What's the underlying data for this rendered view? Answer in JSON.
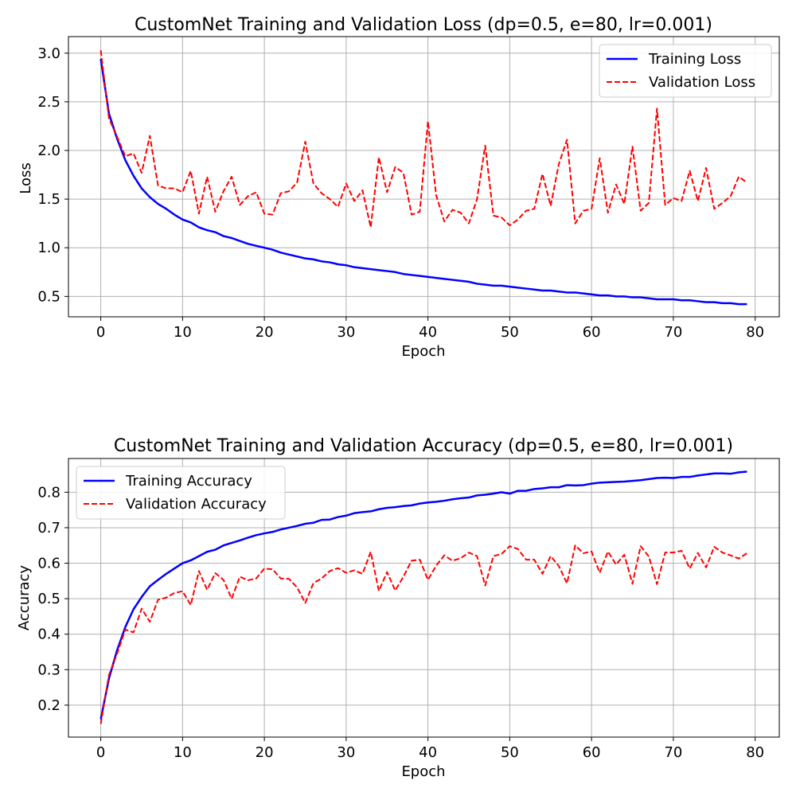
{
  "chart_data": [
    {
      "type": "line",
      "title": "CustomNet Training and Validation Loss (dp=0.5, e=80, lr=0.001)",
      "xlabel": "Epoch",
      "ylabel": "Loss",
      "xlim": [
        -3.95,
        82.95
      ],
      "ylim": [
        0.29,
        3.17
      ],
      "xticks": [
        0,
        10,
        20,
        30,
        40,
        50,
        60,
        70,
        80
      ],
      "xtick_labels": [
        "0",
        "10",
        "20",
        "30",
        "40",
        "50",
        "60",
        "70",
        "80"
      ],
      "yticks": [
        0.5,
        1.0,
        1.5,
        2.0,
        2.5,
        3.0
      ],
      "ytick_labels": [
        "0.5",
        "1.0",
        "1.5",
        "2.0",
        "2.5",
        "3.0"
      ],
      "grid": true,
      "legend_position": "upper right",
      "x": [
        0,
        1,
        2,
        3,
        4,
        5,
        6,
        7,
        8,
        9,
        10,
        11,
        12,
        13,
        14,
        15,
        16,
        17,
        18,
        19,
        20,
        21,
        22,
        23,
        24,
        25,
        26,
        27,
        28,
        29,
        30,
        31,
        32,
        33,
        34,
        35,
        36,
        37,
        38,
        39,
        40,
        41,
        42,
        43,
        44,
        45,
        46,
        47,
        48,
        49,
        50,
        51,
        52,
        53,
        54,
        55,
        56,
        57,
        58,
        59,
        60,
        61,
        62,
        63,
        64,
        65,
        66,
        67,
        68,
        69,
        70,
        71,
        72,
        73,
        74,
        75,
        76,
        77,
        78,
        79
      ],
      "series": [
        {
          "name": "Training Loss",
          "color": "#0000ff",
          "style": "solid",
          "values": [
            2.94,
            2.38,
            2.12,
            1.9,
            1.74,
            1.61,
            1.52,
            1.45,
            1.4,
            1.34,
            1.29,
            1.26,
            1.21,
            1.18,
            1.16,
            1.12,
            1.1,
            1.07,
            1.04,
            1.02,
            1.0,
            0.98,
            0.95,
            0.93,
            0.91,
            0.89,
            0.88,
            0.86,
            0.85,
            0.83,
            0.82,
            0.8,
            0.79,
            0.78,
            0.77,
            0.76,
            0.75,
            0.73,
            0.72,
            0.71,
            0.7,
            0.69,
            0.68,
            0.67,
            0.66,
            0.65,
            0.63,
            0.62,
            0.61,
            0.61,
            0.6,
            0.59,
            0.58,
            0.57,
            0.56,
            0.56,
            0.55,
            0.54,
            0.54,
            0.53,
            0.52,
            0.51,
            0.51,
            0.5,
            0.5,
            0.49,
            0.49,
            0.48,
            0.47,
            0.47,
            0.47,
            0.46,
            0.46,
            0.45,
            0.44,
            0.44,
            0.43,
            0.43,
            0.42,
            0.42
          ]
        },
        {
          "name": "Validation Loss",
          "color": "#ff0000",
          "style": "dashed",
          "values": [
            3.03,
            2.33,
            2.14,
            1.94,
            1.97,
            1.77,
            2.15,
            1.64,
            1.61,
            1.61,
            1.57,
            1.79,
            1.35,
            1.73,
            1.37,
            1.58,
            1.73,
            1.44,
            1.53,
            1.57,
            1.35,
            1.34,
            1.56,
            1.58,
            1.67,
            2.09,
            1.66,
            1.56,
            1.5,
            1.42,
            1.66,
            1.48,
            1.59,
            1.21,
            1.93,
            1.57,
            1.83,
            1.77,
            1.34,
            1.37,
            2.3,
            1.54,
            1.27,
            1.39,
            1.36,
            1.25,
            1.5,
            2.05,
            1.33,
            1.31,
            1.23,
            1.29,
            1.38,
            1.4,
            1.76,
            1.43,
            1.86,
            2.11,
            1.25,
            1.38,
            1.4,
            1.92,
            1.36,
            1.65,
            1.45,
            2.04,
            1.38,
            1.46,
            2.43,
            1.44,
            1.51,
            1.48,
            1.79,
            1.48,
            1.82,
            1.4,
            1.46,
            1.53,
            1.73,
            1.67
          ]
        }
      ]
    },
    {
      "type": "line",
      "title": "CustomNet Training and Validation Accuracy (dp=0.5, e=80, lr=0.001)",
      "xlabel": "Epoch",
      "ylabel": "Accuracy",
      "xlim": [
        -3.95,
        82.95
      ],
      "ylim": [
        0.11,
        0.895
      ],
      "xticks": [
        0,
        10,
        20,
        30,
        40,
        50,
        60,
        70,
        80
      ],
      "xtick_labels": [
        "0",
        "10",
        "20",
        "30",
        "40",
        "50",
        "60",
        "70",
        "80"
      ],
      "yticks": [
        0.2,
        0.3,
        0.4,
        0.5,
        0.6,
        0.7,
        0.8
      ],
      "ytick_labels": [
        "0.2",
        "0.3",
        "0.4",
        "0.5",
        "0.6",
        "0.7",
        "0.8"
      ],
      "grid": true,
      "legend_position": "upper left",
      "x": [
        0,
        1,
        2,
        3,
        4,
        5,
        6,
        7,
        8,
        9,
        10,
        11,
        12,
        13,
        14,
        15,
        16,
        17,
        18,
        19,
        20,
        21,
        22,
        23,
        24,
        25,
        26,
        27,
        28,
        29,
        30,
        31,
        32,
        33,
        34,
        35,
        36,
        37,
        38,
        39,
        40,
        41,
        42,
        43,
        44,
        45,
        46,
        47,
        48,
        49,
        50,
        51,
        52,
        53,
        54,
        55,
        56,
        57,
        58,
        59,
        60,
        61,
        62,
        63,
        64,
        65,
        66,
        67,
        68,
        69,
        70,
        71,
        72,
        73,
        74,
        75,
        76,
        77,
        78,
        79
      ],
      "series": [
        {
          "name": "Training Accuracy",
          "color": "#0000ff",
          "style": "solid",
          "values": [
            0.16,
            0.275,
            0.355,
            0.42,
            0.47,
            0.505,
            0.535,
            0.553,
            0.57,
            0.585,
            0.6,
            0.608,
            0.62,
            0.632,
            0.638,
            0.65,
            0.657,
            0.664,
            0.672,
            0.679,
            0.684,
            0.688,
            0.695,
            0.7,
            0.705,
            0.711,
            0.714,
            0.722,
            0.723,
            0.73,
            0.734,
            0.741,
            0.744,
            0.746,
            0.752,
            0.756,
            0.758,
            0.761,
            0.763,
            0.768,
            0.771,
            0.773,
            0.776,
            0.78,
            0.783,
            0.785,
            0.791,
            0.793,
            0.796,
            0.8,
            0.796,
            0.804,
            0.804,
            0.809,
            0.811,
            0.814,
            0.814,
            0.82,
            0.819,
            0.82,
            0.824,
            0.827,
            0.828,
            0.829,
            0.83,
            0.832,
            0.834,
            0.837,
            0.84,
            0.841,
            0.84,
            0.843,
            0.843,
            0.847,
            0.85,
            0.853,
            0.853,
            0.852,
            0.856,
            0.858
          ]
        },
        {
          "name": "Validation Accuracy",
          "color": "#ff0000",
          "style": "dashed",
          "values": [
            0.147,
            0.285,
            0.345,
            0.413,
            0.405,
            0.472,
            0.435,
            0.497,
            0.503,
            0.516,
            0.521,
            0.482,
            0.578,
            0.525,
            0.572,
            0.553,
            0.5,
            0.562,
            0.552,
            0.557,
            0.585,
            0.583,
            0.557,
            0.556,
            0.532,
            0.488,
            0.544,
            0.557,
            0.578,
            0.586,
            0.573,
            0.58,
            0.57,
            0.632,
            0.522,
            0.575,
            0.523,
            0.562,
            0.607,
            0.61,
            0.553,
            0.593,
            0.622,
            0.607,
            0.614,
            0.63,
            0.62,
            0.537,
            0.62,
            0.626,
            0.648,
            0.64,
            0.61,
            0.61,
            0.57,
            0.62,
            0.592,
            0.543,
            0.65,
            0.628,
            0.633,
            0.573,
            0.633,
            0.596,
            0.624,
            0.542,
            0.648,
            0.619,
            0.541,
            0.63,
            0.63,
            0.635,
            0.585,
            0.629,
            0.588,
            0.646,
            0.63,
            0.622,
            0.613,
            0.628
          ]
        }
      ]
    }
  ]
}
